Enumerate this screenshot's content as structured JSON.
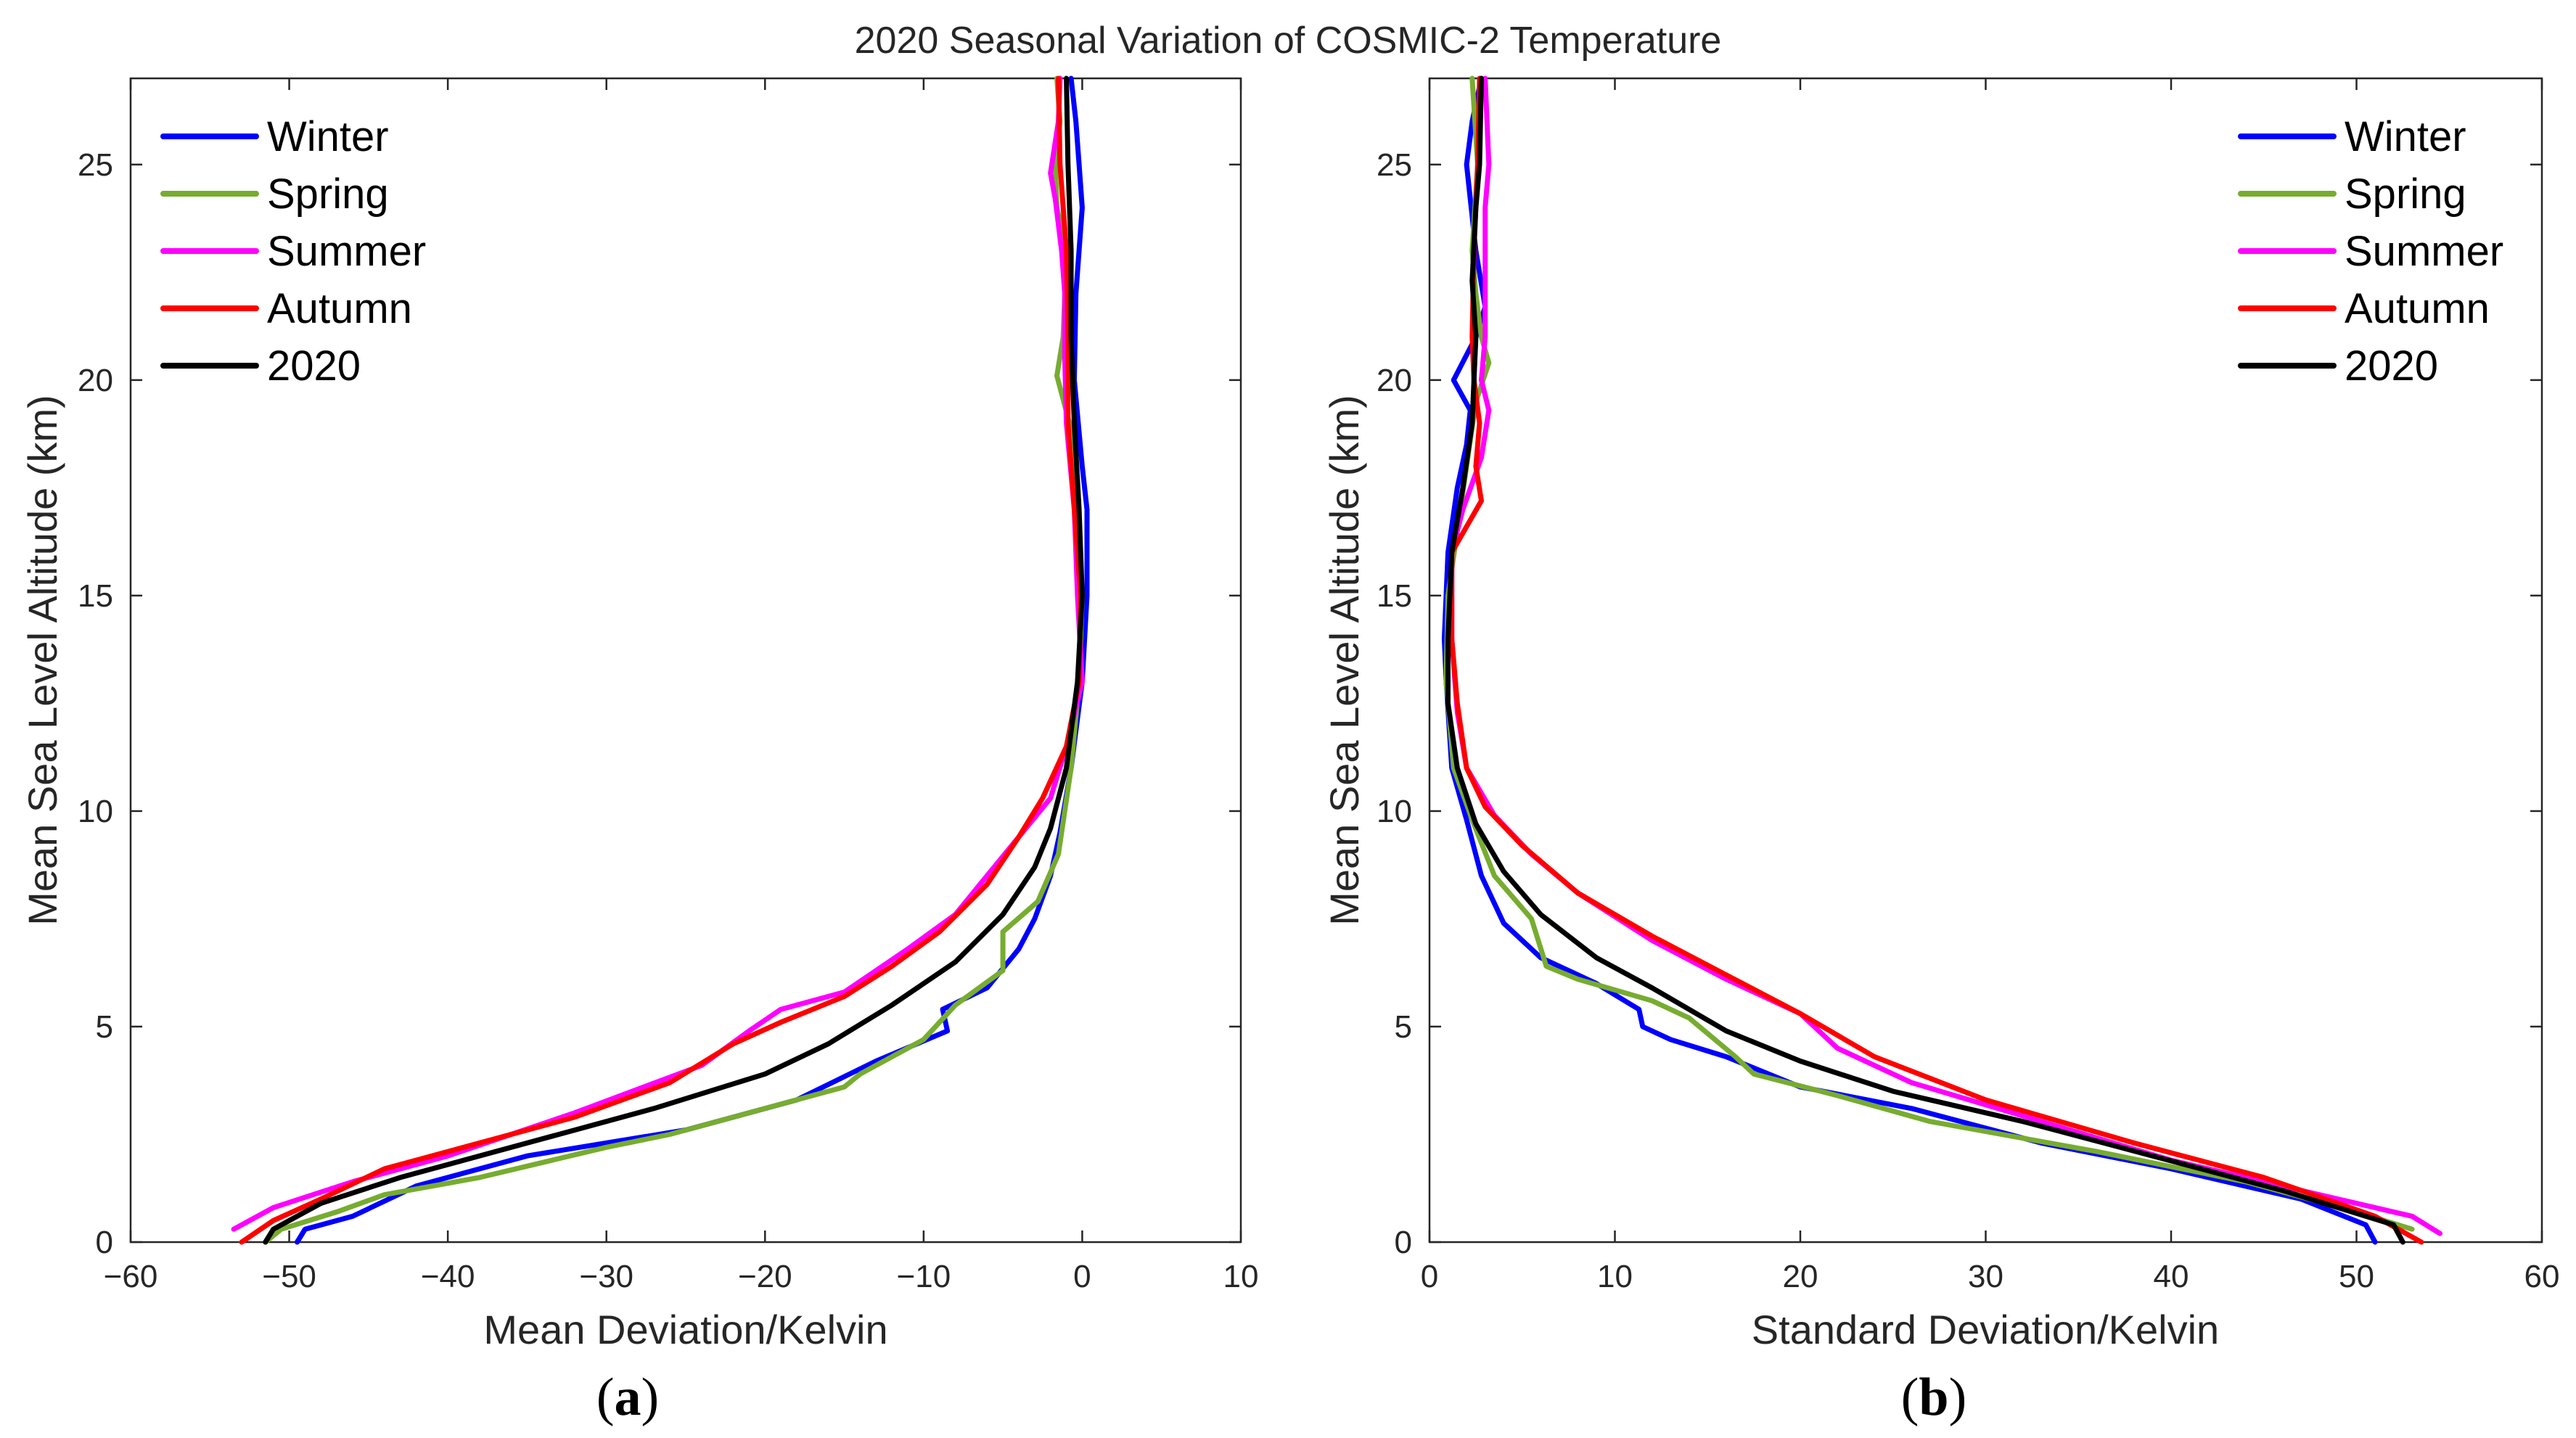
{
  "figure": {
    "title": "2020 Seasonal Variation of COSMIC-2 Temperature"
  },
  "colors": {
    "Winter": "#0000ff",
    "Spring": "#77ac30",
    "Summer": "#ff00ff",
    "Autumn": "#ff0000",
    "2020": "#000000"
  },
  "chart_data": [
    {
      "type": "line",
      "panel": "a",
      "panel_label": {
        "open": "(",
        "letter": "a",
        "close": ")"
      },
      "title": "2020 Seasonal Variation of COSMIC-2 Temperature",
      "xlabel": "Mean Deviation/Kelvin",
      "ylabel": "Mean Sea Level Altitude (km)",
      "xlim": [
        -60,
        10
      ],
      "ylim": [
        0,
        27
      ],
      "xticks": [
        -60,
        -50,
        -40,
        -30,
        -20,
        -10,
        0,
        10
      ],
      "xtick_labels": [
        "−60",
        "−50",
        "−40",
        "−30",
        "−20",
        "−10",
        "0",
        "10"
      ],
      "yticks": [
        0,
        5,
        10,
        15,
        20,
        25
      ],
      "ytick_labels": [
        "0",
        "5",
        "10",
        "15",
        "20",
        "25"
      ],
      "grid": false,
      "legend_position": "top-left",
      "series": [
        {
          "name": "Winter",
          "points": [
            [
              -49.5,
              0
            ],
            [
              -49,
              0.3
            ],
            [
              -46,
              0.6
            ],
            [
              -42,
              1.3
            ],
            [
              -35,
              2.0
            ],
            [
              -25,
              2.6
            ],
            [
              -18,
              3.3
            ],
            [
              -13,
              4.2
            ],
            [
              -8.5,
              4.9
            ],
            [
              -8.8,
              5.4
            ],
            [
              -6,
              5.9
            ],
            [
              -4,
              6.8
            ],
            [
              -3,
              7.5
            ],
            [
              -2,
              8.5
            ],
            [
              -1.4,
              9.5
            ],
            [
              -0.7,
              11
            ],
            [
              0,
              13
            ],
            [
              0.3,
              15
            ],
            [
              0.3,
              17
            ],
            [
              0,
              18
            ],
            [
              -0.5,
              20
            ],
            [
              -0.4,
              22
            ],
            [
              0,
              24
            ],
            [
              -0.2,
              25
            ],
            [
              -0.4,
              26
            ],
            [
              -0.7,
              27
            ]
          ]
        },
        {
          "name": "Spring",
          "points": [
            [
              -51.5,
              0
            ],
            [
              -50.5,
              0.3
            ],
            [
              -47,
              0.7
            ],
            [
              -44,
              1.1
            ],
            [
              -38,
              1.5
            ],
            [
              -30,
              2.2
            ],
            [
              -26,
              2.5
            ],
            [
              -20,
              3.1
            ],
            [
              -15,
              3.6
            ],
            [
              -14,
              3.9
            ],
            [
              -10,
              4.7
            ],
            [
              -8,
              5.5
            ],
            [
              -5,
              6.3
            ],
            [
              -5,
              7.2
            ],
            [
              -2.8,
              7.9
            ],
            [
              -1.5,
              9
            ],
            [
              -0.7,
              11
            ],
            [
              -0.2,
              13
            ],
            [
              0,
              15
            ],
            [
              -0.3,
              17
            ],
            [
              -0.8,
              19
            ],
            [
              -1.6,
              20.1
            ],
            [
              -1.2,
              21
            ],
            [
              -1,
              23
            ],
            [
              -1.6,
              24
            ],
            [
              -1.7,
              25
            ],
            [
              -1.4,
              26
            ],
            [
              -1.6,
              27
            ]
          ]
        },
        {
          "name": "Summer",
          "points": [
            [
              -53.5,
              0.3
            ],
            [
              -51,
              0.8
            ],
            [
              -46,
              1.4
            ],
            [
              -40,
              2.0
            ],
            [
              -32,
              3.0
            ],
            [
              -24,
              4.1
            ],
            [
              -21,
              4.9
            ],
            [
              -19,
              5.4
            ],
            [
              -15,
              5.8
            ],
            [
              -11,
              6.8
            ],
            [
              -8,
              7.6
            ],
            [
              -6,
              8.5
            ],
            [
              -4,
              9.4
            ],
            [
              -2,
              10.3
            ],
            [
              -1,
              11.5
            ],
            [
              0,
              13
            ],
            [
              -0.3,
              15
            ],
            [
              -0.5,
              17
            ],
            [
              -1,
              19
            ],
            [
              -1.1,
              20.5
            ],
            [
              -1.1,
              22
            ],
            [
              -1.3,
              23
            ],
            [
              -1.7,
              24.2
            ],
            [
              -2,
              24.8
            ],
            [
              -1.5,
              26
            ],
            [
              -1.4,
              27
            ]
          ]
        },
        {
          "name": "Autumn",
          "points": [
            [
              -53,
              0
            ],
            [
              -51,
              0.5
            ],
            [
              -48,
              1
            ],
            [
              -44,
              1.7
            ],
            [
              -40,
              2.1
            ],
            [
              -32,
              2.9
            ],
            [
              -26,
              3.7
            ],
            [
              -22,
              4.6
            ],
            [
              -19,
              5.1
            ],
            [
              -15,
              5.7
            ],
            [
              -12,
              6.4
            ],
            [
              -9,
              7.2
            ],
            [
              -6,
              8.3
            ],
            [
              -4,
              9.4
            ],
            [
              -2.5,
              10.3
            ],
            [
              -1,
              11.5
            ],
            [
              -0.2,
              13
            ],
            [
              -0.1,
              15
            ],
            [
              -0.5,
              17
            ],
            [
              -0.9,
              19
            ],
            [
              -0.9,
              21
            ],
            [
              -1,
              23
            ],
            [
              -1.4,
              25
            ],
            [
              -1.5,
              27
            ]
          ]
        },
        {
          "name": "2020",
          "points": [
            [
              -51.5,
              0
            ],
            [
              -51,
              0.3
            ],
            [
              -48,
              0.9
            ],
            [
              -43,
              1.5
            ],
            [
              -35,
              2.3
            ],
            [
              -27,
              3.1
            ],
            [
              -20,
              3.9
            ],
            [
              -16,
              4.6
            ],
            [
              -12,
              5.5
            ],
            [
              -8,
              6.5
            ],
            [
              -5,
              7.6
            ],
            [
              -3,
              8.7
            ],
            [
              -2,
              9.6
            ],
            [
              -1,
              11
            ],
            [
              -0.3,
              13
            ],
            [
              0,
              15
            ],
            [
              -0.2,
              17
            ],
            [
              -0.5,
              19
            ],
            [
              -0.7,
              21
            ],
            [
              -0.7,
              23
            ],
            [
              -0.9,
              25
            ],
            [
              -1,
              27
            ]
          ]
        }
      ]
    },
    {
      "type": "line",
      "panel": "b",
      "panel_label": {
        "open": "(",
        "letter": "b",
        "close": ")"
      },
      "xlabel": "Standard Deviation/Kelvin",
      "ylabel": "Mean Sea Level Altitude (km)",
      "xlim": [
        0,
        60
      ],
      "ylim": [
        0,
        27
      ],
      "xticks": [
        0,
        10,
        20,
        30,
        40,
        50,
        60
      ],
      "xtick_labels": [
        "0",
        "10",
        "20",
        "30",
        "40",
        "50",
        "60"
      ],
      "yticks": [
        0,
        5,
        10,
        15,
        20,
        25
      ],
      "ytick_labels": [
        "0",
        "5",
        "10",
        "15",
        "20",
        "25"
      ],
      "grid": false,
      "legend_position": "top-right",
      "series": [
        {
          "name": "Winter",
          "points": [
            [
              51,
              0
            ],
            [
              50.5,
              0.4
            ],
            [
              47,
              1
            ],
            [
              40,
              1.7
            ],
            [
              33,
              2.3
            ],
            [
              26,
              3.1
            ],
            [
              20,
              3.6
            ],
            [
              16,
              4.3
            ],
            [
              13,
              4.7
            ],
            [
              11.5,
              5
            ],
            [
              11.3,
              5.4
            ],
            [
              9,
              6
            ],
            [
              6,
              6.6
            ],
            [
              4,
              7.4
            ],
            [
              2.8,
              8.5
            ],
            [
              2,
              9.8
            ],
            [
              1.2,
              11
            ],
            [
              0.9,
              13
            ],
            [
              0.8,
              14
            ],
            [
              1,
              16
            ],
            [
              1.5,
              17.5
            ],
            [
              2,
              18.5
            ],
            [
              2.2,
              19.3
            ],
            [
              1.3,
              20
            ],
            [
              2.5,
              21
            ],
            [
              3,
              21.7
            ],
            [
              2.5,
              23
            ],
            [
              2,
              25
            ],
            [
              2.3,
              26
            ],
            [
              2.8,
              27
            ]
          ]
        },
        {
          "name": "Spring",
          "points": [
            [
              53,
              0.3
            ],
            [
              50,
              0.7
            ],
            [
              44,
              1.4
            ],
            [
              36,
              2.1
            ],
            [
              27,
              2.8
            ],
            [
              22,
              3.4
            ],
            [
              17.5,
              3.9
            ],
            [
              16.5,
              4.3
            ],
            [
              14,
              5.2
            ],
            [
              12,
              5.6
            ],
            [
              8,
              6.1
            ],
            [
              6.3,
              6.4
            ],
            [
              5.5,
              7.5
            ],
            [
              3.5,
              8.5
            ],
            [
              2.3,
              9.8
            ],
            [
              1.3,
              11
            ],
            [
              0.9,
              13
            ],
            [
              1,
              15
            ],
            [
              1.5,
              16.5
            ],
            [
              2,
              18
            ],
            [
              2.5,
              19.5
            ],
            [
              3.2,
              20.4
            ],
            [
              2.8,
              21
            ],
            [
              2.5,
              22
            ],
            [
              2.3,
              23
            ],
            [
              2.6,
              25
            ],
            [
              2.3,
              27
            ]
          ]
        },
        {
          "name": "Summer",
          "points": [
            [
              54.5,
              0.2
            ],
            [
              53,
              0.6
            ],
            [
              47,
              1.2
            ],
            [
              40,
              1.9
            ],
            [
              33,
              2.8
            ],
            [
              26,
              3.7
            ],
            [
              22,
              4.5
            ],
            [
              20,
              5.3
            ],
            [
              16,
              6.1
            ],
            [
              12,
              7
            ],
            [
              8,
              8.1
            ],
            [
              5.5,
              9
            ],
            [
              3.5,
              9.9
            ],
            [
              2,
              11
            ],
            [
              1.5,
              12.3
            ],
            [
              1.2,
              14
            ],
            [
              1.2,
              16
            ],
            [
              1.8,
              17
            ],
            [
              2.8,
              18.2
            ],
            [
              3.2,
              19.3
            ],
            [
              2.8,
              20
            ],
            [
              3,
              21
            ],
            [
              3,
              22.5
            ],
            [
              3,
              24
            ],
            [
              3.2,
              25
            ],
            [
              3,
              27
            ]
          ]
        },
        {
          "name": "Autumn",
          "points": [
            [
              53.5,
              0
            ],
            [
              51,
              0.6
            ],
            [
              45,
              1.5
            ],
            [
              38,
              2.3
            ],
            [
              30,
              3.3
            ],
            [
              24,
              4.3
            ],
            [
              20,
              5.3
            ],
            [
              16,
              6.2
            ],
            [
              12,
              7.1
            ],
            [
              8,
              8.1
            ],
            [
              5,
              9.2
            ],
            [
              3,
              10.1
            ],
            [
              2,
              11
            ],
            [
              1.5,
              12.5
            ],
            [
              1.2,
              14
            ],
            [
              1.2,
              16
            ],
            [
              2,
              16.6
            ],
            [
              2.8,
              17.2
            ],
            [
              2.5,
              18
            ],
            [
              2.7,
              19
            ],
            [
              2.4,
              20
            ],
            [
              2.3,
              21
            ],
            [
              2.4,
              23
            ],
            [
              2.6,
              25
            ],
            [
              2.7,
              27
            ]
          ]
        },
        {
          "name": "2020",
          "points": [
            [
              52.5,
              0
            ],
            [
              52,
              0.4
            ],
            [
              46,
              1.2
            ],
            [
              39,
              2
            ],
            [
              32,
              2.8
            ],
            [
              25,
              3.5
            ],
            [
              20,
              4.2
            ],
            [
              16,
              4.9
            ],
            [
              12,
              5.9
            ],
            [
              9,
              6.6
            ],
            [
              6,
              7.6
            ],
            [
              4,
              8.6
            ],
            [
              2.5,
              9.7
            ],
            [
              1.5,
              11
            ],
            [
              1,
              12.5
            ],
            [
              1,
              14
            ],
            [
              1.2,
              16
            ],
            [
              1.8,
              17.5
            ],
            [
              2.3,
              19
            ],
            [
              2.4,
              20
            ],
            [
              2.5,
              21
            ],
            [
              2.3,
              22.3
            ],
            [
              2.5,
              24
            ],
            [
              2.7,
              25
            ],
            [
              2.8,
              27
            ]
          ]
        }
      ]
    }
  ]
}
